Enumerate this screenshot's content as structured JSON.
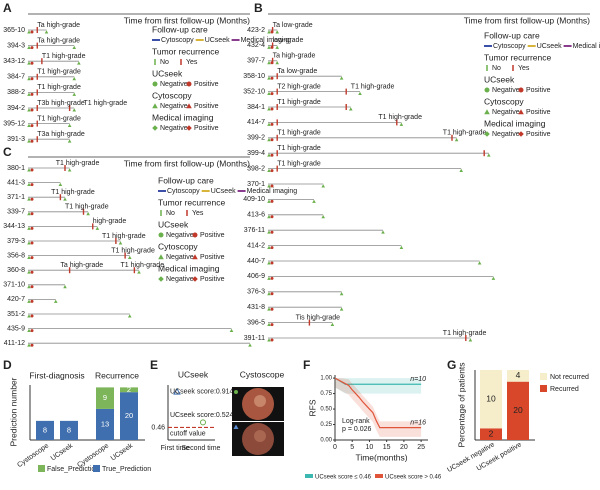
{
  "chart_data": [
    {
      "type": "swimmer",
      "label": "A",
      "axis_label": "Time from first follow-up (Months)",
      "xlim": [
        0,
        24
      ],
      "rows": [
        {
          "id": "365-10",
          "duration": 2,
          "recurrence": [
            1
          ],
          "labels": [
            {
              "text": "Ta high-grade",
              "time": 1
            }
          ]
        },
        {
          "id": "394-3",
          "duration": 5,
          "recurrence": [
            1
          ],
          "labels": [
            {
              "text": "Ta high-grade",
              "time": 1
            }
          ]
        },
        {
          "id": "343-12",
          "duration": 5.5,
          "recurrence": [
            1.5
          ],
          "labels": [
            {
              "text": "T1 high-grade",
              "time": 1.5
            }
          ]
        },
        {
          "id": "384-7",
          "duration": 5,
          "recurrence": [
            1
          ],
          "labels": [
            {
              "text": "T1 high-grade",
              "time": 1
            }
          ]
        },
        {
          "id": "388-2",
          "duration": 5,
          "recurrence": [
            1
          ],
          "labels": [
            {
              "text": "T1 high-grade",
              "time": 1
            }
          ]
        },
        {
          "id": "394-2",
          "duration": 5,
          "recurrence": [
            1,
            4.5
          ],
          "labels": [
            {
              "text": "T3b high-grade",
              "time": 1
            },
            {
              "text": "T1 high-grade",
              "time": 6
            }
          ]
        },
        {
          "id": "395-12",
          "duration": 4.5,
          "recurrence": [
            1
          ],
          "labels": [
            {
              "text": "T1 high-grade",
              "time": 1
            }
          ]
        },
        {
          "id": "391-3",
          "duration": 4.5,
          "recurrence": [
            1
          ],
          "labels": [
            {
              "text": "T3a high-grade",
              "time": 1
            }
          ]
        }
      ],
      "legend": {
        "follow_up": "Follow-up care",
        "follow_items": [
          "Cytoscopy",
          "UCseek",
          "Medical imaging"
        ],
        "recurrence": "Tumor recurrence",
        "recurrence_items": [
          "No",
          "Yes"
        ],
        "groups": [
          {
            "name": "UCseek",
            "items": [
              "Negative",
              "Positive"
            ]
          },
          {
            "name": "Cytoscopy",
            "items": [
              "Negative",
              "Positive"
            ]
          },
          {
            "name": "Medical imaging",
            "items": [
              "Negative",
              "Positive"
            ]
          }
        ]
      }
    },
    {
      "type": "swimmer",
      "label": "B",
      "axis_label": "Time from first follow-up (Months)",
      "xlim": [
        0,
        35
      ],
      "rows": [
        {
          "id": "423-2",
          "duration": 1,
          "recurrence": [
            0.5
          ],
          "labels": [
            {
              "text": "Ta low-grade",
              "time": 0.5
            }
          ]
        },
        {
          "id": "432-4",
          "duration": 1,
          "recurrence": [
            0.5
          ],
          "labels": [
            {
              "text": "low-grade",
              "time": 0.5
            }
          ]
        },
        {
          "id": "397-7",
          "duration": 1,
          "recurrence": [
            0.5
          ],
          "labels": [
            {
              "text": "Ta high-grade",
              "time": 0.5
            }
          ]
        },
        {
          "id": "358-10",
          "duration": 8,
          "recurrence": [
            1
          ],
          "labels": [
            {
              "text": "Ta low-grade",
              "time": 1
            }
          ]
        },
        {
          "id": "352-10",
          "duration": 10,
          "recurrence": [
            1,
            8.5
          ],
          "labels": [
            {
              "text": "T2 high-grade",
              "time": 1
            },
            {
              "text": "T1 high-grade",
              "time": 9
            }
          ]
        },
        {
          "id": "384-1",
          "duration": 9,
          "recurrence": [
            1,
            8.5
          ],
          "labels": [
            {
              "text": "T1 high-grade",
              "time": 1
            }
          ]
        },
        {
          "id": "414-7",
          "duration": 14.5,
          "recurrence": [
            1,
            14
          ],
          "labels": [
            {
              "text": "T1 high-grade",
              "time": 12
            }
          ]
        },
        {
          "id": "399-2",
          "duration": 20.5,
          "recurrence": [
            1,
            20
          ],
          "labels": [
            {
              "text": "T1 high-grade",
              "time": 1
            },
            {
              "text": "T1 high-grade",
              "time": 19
            }
          ]
        },
        {
          "id": "399-4",
          "duration": 24,
          "recurrence": [
            1,
            23.5
          ],
          "labels": [
            {
              "text": "T1 high-grade",
              "time": 1
            }
          ]
        },
        {
          "id": "398-2",
          "duration": 21,
          "recurrence": [
            1
          ],
          "labels": [
            {
              "text": "T1 high-grade",
              "time": 1
            }
          ]
        },
        {
          "id": "370-1",
          "duration": 6,
          "recurrence": [],
          "labels": []
        },
        {
          "id": "409-10",
          "duration": 5,
          "recurrence": [],
          "labels": []
        },
        {
          "id": "413-6",
          "duration": 6,
          "recurrence": [],
          "labels": []
        },
        {
          "id": "376-11",
          "duration": 12.5,
          "recurrence": [],
          "labels": []
        },
        {
          "id": "414-2",
          "duration": 14.5,
          "recurrence": [],
          "labels": []
        },
        {
          "id": "440-7",
          "duration": 23,
          "recurrence": [],
          "labels": []
        },
        {
          "id": "406-9",
          "duration": 24.5,
          "recurrence": [],
          "labels": []
        },
        {
          "id": "376-3",
          "duration": 8,
          "recurrence": [],
          "labels": []
        },
        {
          "id": "431-8",
          "duration": 8,
          "recurrence": [],
          "labels": []
        },
        {
          "id": "396-5",
          "duration": 7,
          "recurrence": [
            4.5
          ],
          "labels": [
            {
              "text": "Tis high-grade",
              "time": 3
            }
          ]
        },
        {
          "id": "391-11",
          "duration": 22,
          "recurrence": [
            21.5
          ],
          "labels": [
            {
              "text": "T1 high-grade",
              "time": 19
            }
          ]
        }
      ],
      "legend": {
        "follow_up": "Follow-up care",
        "follow_items": [
          "Cytoscopy",
          "UCseek",
          "Medical imaging"
        ],
        "recurrence": "Tumor recurrence",
        "recurrence_items": [
          "No",
          "Yes"
        ],
        "groups": [
          {
            "name": "UCseek",
            "items": [
              "Negative",
              "Positive"
            ]
          },
          {
            "name": "Cytoscopy",
            "items": [
              "Negative",
              "Positive"
            ]
          },
          {
            "name": "Medical imaging",
            "items": [
              "Negative",
              "Positive"
            ]
          }
        ]
      }
    },
    {
      "type": "swimmer",
      "label": "C",
      "axis_label": "Time from first follow-up (Months)",
      "xlim": [
        0,
        24
      ],
      "rows": [
        {
          "id": "380-1",
          "duration": 4.5,
          "recurrence": [
            4
          ],
          "labels": [
            {
              "text": "T1 high-grade",
              "time": 3
            }
          ]
        },
        {
          "id": "441-3",
          "duration": 3.5,
          "recurrence": [],
          "labels": []
        },
        {
          "id": "371-1",
          "duration": 4,
          "recurrence": [
            3.5
          ],
          "labels": [
            {
              "text": "T1 high-grade",
              "time": 2.5
            }
          ]
        },
        {
          "id": "339-7",
          "duration": 6.5,
          "recurrence": [
            6
          ],
          "labels": [
            {
              "text": "T1 high-grade",
              "time": 4
            }
          ]
        },
        {
          "id": "344-13",
          "duration": 7.5,
          "recurrence": [
            7
          ],
          "labels": [
            {
              "text": "high-grade",
              "time": 7
            }
          ]
        },
        {
          "id": "379-3",
          "duration": 10,
          "recurrence": [
            9.5
          ],
          "labels": [
            {
              "text": "T1 high-grade",
              "time": 8
            }
          ]
        },
        {
          "id": "356-8",
          "duration": 11,
          "recurrence": [
            10.5
          ],
          "labels": [
            {
              "text": "T1 high-grade",
              "time": 9
            }
          ]
        },
        {
          "id": "360-8",
          "duration": 12,
          "recurrence": [
            4.5,
            11.5
          ],
          "labels": [
            {
              "text": "Ta high-grade",
              "time": 3.5
            },
            {
              "text": "T1 high-grade",
              "time": 10
            }
          ]
        },
        {
          "id": "371-10",
          "duration": 4,
          "recurrence": [],
          "labels": []
        },
        {
          "id": "420-7",
          "duration": 3,
          "recurrence": [],
          "labels": []
        },
        {
          "id": "351-2",
          "duration": 11,
          "recurrence": [],
          "labels": []
        },
        {
          "id": "435-9",
          "duration": 22,
          "recurrence": [],
          "labels": []
        },
        {
          "id": "411-12",
          "duration": 24,
          "recurrence": [],
          "labels": []
        }
      ],
      "legend": {
        "follow_up": "Follow-up care",
        "follow_items": [
          "Cytoscopy",
          "UCseek",
          "Medical imaging"
        ],
        "recurrence": "Tumor recurrence",
        "recurrence_items": [
          "No",
          "Yes"
        ],
        "groups": [
          {
            "name": "UCseek",
            "items": [
              "Negative",
              "Positive"
            ]
          },
          {
            "name": "Cytoscopy",
            "items": [
              "Negative",
              "Positive"
            ]
          },
          {
            "name": "Medical imaging",
            "items": [
              "Negative",
              "Positive"
            ]
          }
        ]
      }
    },
    {
      "type": "grouped_stack",
      "label": "D",
      "ylabel": "Prediction number",
      "groups": [
        "First-diagnosis",
        "Recurrence"
      ],
      "categories": [
        "Cystoscope",
        "UCseek",
        "Cystoscope",
        "UCseek"
      ],
      "ylim": [
        0,
        23
      ],
      "series": [
        {
          "name": "True_Prediction",
          "color": "#3f6fae",
          "values": [
            8,
            8,
            13,
            20
          ]
        },
        {
          "name": "False_Prediction",
          "color": "#7db55a",
          "values": [
            null,
            null,
            9,
            2
          ]
        }
      ]
    },
    {
      "type": "score",
      "label": "E",
      "title": "UCseek",
      "categories": [
        "First time",
        "Second time"
      ],
      "values": [
        0.914,
        0.524
      ],
      "value_labels": [
        "UCseek score:0.914",
        "UCseek score:0.524"
      ],
      "cutoff": 0.46,
      "cutoff_text": "cutoff value",
      "ylim": [
        0.3,
        1.0
      ],
      "image_title": "Cystoscope"
    },
    {
      "type": "km",
      "label": "F",
      "ylabel": "RFS",
      "xlabel": "Time(months)",
      "xlim": [
        0,
        27
      ],
      "ylim": [
        0,
        1.05
      ],
      "xticks": [
        0,
        5,
        10,
        15,
        20,
        25
      ],
      "yticks": [
        {
          "value": 0,
          "label": "0.00"
        },
        {
          "value": 0.25,
          "label": "0.25"
        },
        {
          "value": 0.5,
          "label": "0.50"
        },
        {
          "value": 0.75,
          "label": "0.75"
        },
        {
          "value": 1,
          "label": "1.00"
        }
      ],
      "series": [
        {
          "name": "UCseek score ≤ 0.46",
          "color": "#3bb8b0",
          "n": "n=10",
          "x": [
            0,
            3,
            25
          ],
          "values": [
            1,
            0.9,
            0.9
          ]
        },
        {
          "name": "UCseek score > 0.46",
          "color": "#e0553a",
          "n": "n=16",
          "x": [
            0,
            2,
            4,
            5,
            6,
            7,
            8,
            9,
            10,
            11,
            12,
            13,
            25
          ],
          "values": [
            1,
            0.94,
            0.88,
            0.81,
            0.75,
            0.69,
            0.62,
            0.56,
            0.5,
            0.44,
            0.31,
            0.2,
            0.2
          ]
        }
      ],
      "annotations": [
        "Log-rank",
        "p = 0.026"
      ]
    },
    {
      "type": "percent_stack",
      "label": "G",
      "ylabel": "Percentage of patients",
      "categories": [
        "UCseek negative",
        "UCseek positive"
      ],
      "series": [
        {
          "name": "Recurred",
          "color": "#d9472b",
          "values": [
            2,
            20
          ]
        },
        {
          "name": "Not recurred",
          "color": "#f6eecb",
          "values": [
            10,
            4
          ]
        }
      ]
    }
  ]
}
